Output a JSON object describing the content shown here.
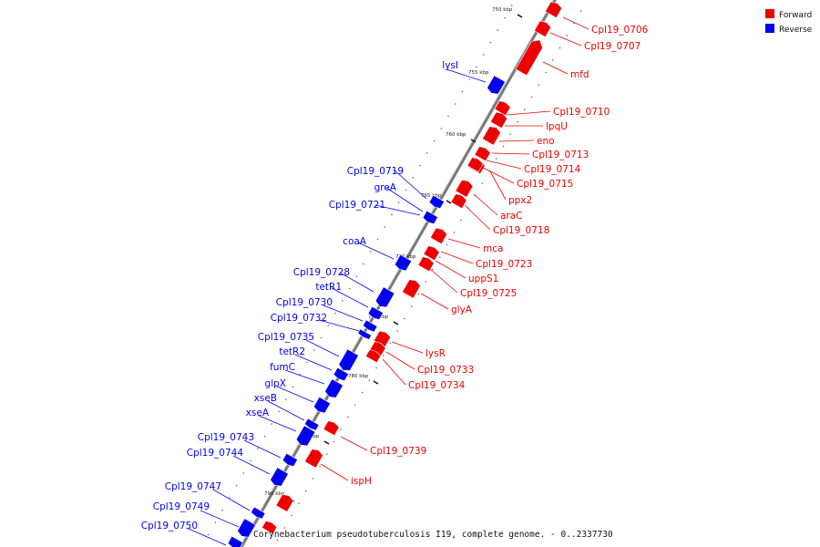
{
  "caption": "Corynebacterium pseudotuberculosis I19, complete genome. - 0..2337730",
  "legend": [
    {
      "label": "Forward",
      "color": "#ee0000"
    },
    {
      "label": "Reverse",
      "color": "#0000ee"
    }
  ],
  "colors": {
    "forward": "#ee0000",
    "reverse": "#0000ee",
    "backbone": "#7a7a7a"
  },
  "ticks": [
    "750 kbp",
    "755 kbp",
    "760 kbp",
    "765 kbp",
    "770 kbp",
    "775 kbp",
    "780 kbp",
    "785 kbp",
    "790 kbp"
  ],
  "forward_genes": [
    "Cpl19_0706",
    "Cpl19_0707",
    "mfd",
    "Cpl19_0710",
    "lpqU",
    "eno",
    "Cpl19_0713",
    "Cpl19_0714",
    "Cpl19_0715",
    "ppx2",
    "araC",
    "Cpl19_0718",
    "mca",
    "Cpl19_0723",
    "uppS1",
    "Cpl19_0725",
    "glyA",
    "lysR",
    "Cpl19_0733",
    "Cpl19_0734",
    "Cpl19_0739",
    "ispH"
  ],
  "reverse_genes": [
    "lysI",
    "Cpl19_0719",
    "greA",
    "Cpl19_0721",
    "coaA",
    "Cpl19_0728",
    "tetR1",
    "Cpl19_0730",
    "Cpl19_0732",
    "Cpl19_0735",
    "tetR2",
    "fumC",
    "glpX",
    "xseB",
    "xseA",
    "Cpl19_0743",
    "Cpl19_0744",
    "Cpl19_0747",
    "Cpl19_0749",
    "Cpl19_0750"
  ]
}
